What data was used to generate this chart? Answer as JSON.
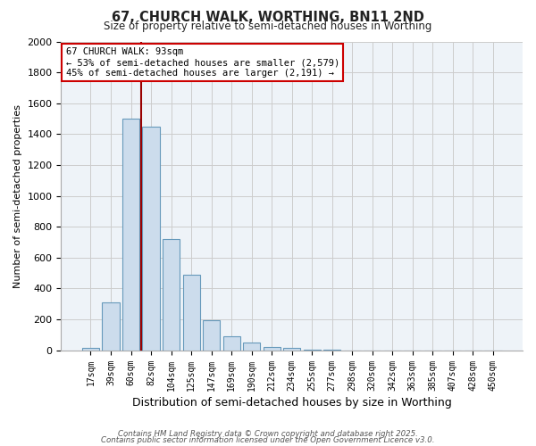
{
  "title1": "67, CHURCH WALK, WORTHING, BN11 2ND",
  "title2": "Size of property relative to semi-detached houses in Worthing",
  "xlabel": "Distribution of semi-detached houses by size in Worthing",
  "ylabel": "Number of semi-detached properties",
  "footnote1": "Contains HM Land Registry data © Crown copyright and database right 2025.",
  "footnote2": "Contains public sector information licensed under the Open Government Licence v3.0.",
  "annotation_title": "67 CHURCH WALK: 93sqm",
  "annotation_line1": "← 53% of semi-detached houses are smaller (2,579)",
  "annotation_line2": "45% of semi-detached houses are larger (2,191) →",
  "bar_labels": [
    "17sqm",
    "39sqm",
    "60sqm",
    "82sqm",
    "104sqm",
    "125sqm",
    "147sqm",
    "169sqm",
    "190sqm",
    "212sqm",
    "234sqm",
    "255sqm",
    "277sqm",
    "298sqm",
    "320sqm",
    "342sqm",
    "363sqm",
    "385sqm",
    "407sqm",
    "428sqm",
    "450sqm"
  ],
  "bar_values": [
    15,
    310,
    1500,
    1450,
    720,
    490,
    195,
    90,
    50,
    20,
    15,
    5,
    2,
    0,
    0,
    0,
    0,
    0,
    0,
    0,
    0
  ],
  "bar_color": "#ccdcec",
  "bar_edge_color": "#6699bb",
  "vline_color": "#990000",
  "annotation_box_color": "#cc0000",
  "ylim": [
    0,
    2000
  ],
  "yticks": [
    0,
    200,
    400,
    600,
    800,
    1000,
    1200,
    1400,
    1600,
    1800,
    2000
  ],
  "grid_color": "#cccccc",
  "bg_color": "#eef3f8",
  "fig_bg_color": "#ffffff",
  "vline_pos": 2.5
}
